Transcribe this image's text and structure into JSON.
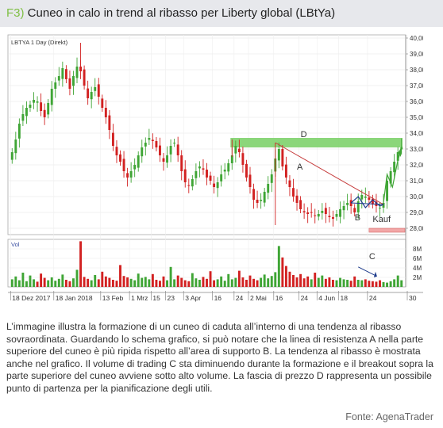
{
  "header": {
    "figure_tag": "F3)",
    "title": "Cuneo in calo in trend al ribasso per Liberty global (LBtYa)"
  },
  "chart_data": {
    "type": "candlestick",
    "instrument_label": "LBTYA 1 Day (Direkt)",
    "volume_label": "Vol",
    "price_axis": {
      "ylim": [
        27.6,
        40.2
      ],
      "ticks": [
        "28,00",
        "29,00",
        "30,00",
        "31,00",
        "32,00",
        "33,00",
        "34,00",
        "35,00",
        "36,00",
        "37,00",
        "38,00",
        "39,00",
        "40,00"
      ]
    },
    "volume_axis": {
      "ylim": [
        0,
        10
      ],
      "ticks": [
        "2M",
        "4M",
        "6M",
        "8M"
      ]
    },
    "x_axis_labels": [
      "18 Dez 2017",
      "18 Jan 2018",
      "13 Feb",
      "1 Mrz",
      "15",
      "23",
      "3 Apr",
      "16",
      "24",
      "2 Mai",
      "16",
      "24",
      "4 Jun",
      "18",
      "24",
      "30"
    ],
    "close_path": [
      32.8,
      33.6,
      34.6,
      35.2,
      35.6,
      35.8,
      36.1,
      36.0,
      35.4,
      35.0,
      35.9,
      36.8,
      37.2,
      37.6,
      38.1,
      37.4,
      36.8,
      37.6,
      38.2,
      37.9,
      37.0,
      36.2,
      36.6,
      36.9,
      36.3,
      35.6,
      35.0,
      34.2,
      33.2,
      32.6,
      32.2,
      31.6,
      31.2,
      31.6,
      32.0,
      32.6,
      33.1,
      33.4,
      33.7,
      33.5,
      33.1,
      32.6,
      32.2,
      32.6,
      33.2,
      33.4,
      32.6,
      31.6,
      30.9,
      30.7,
      31.1,
      31.6,
      31.9,
      31.7,
      31.2,
      31.0,
      30.6,
      30.9,
      31.4,
      31.7,
      32.1,
      32.6,
      33.2,
      32.8,
      32.0,
      31.2,
      30.6,
      29.8,
      29.6,
      29.8,
      30.3,
      30.8,
      31.4,
      32.4,
      33.0,
      31.9,
      31.2,
      30.6,
      30.0,
      29.6,
      29.2,
      29.0,
      28.9,
      29.0,
      28.8,
      28.9,
      29.1,
      28.9,
      28.7,
      28.6,
      28.9,
      29.2,
      29.4,
      29.6,
      29.4,
      29.0,
      29.7,
      30.1,
      30.0,
      29.8,
      29.5,
      29.4,
      29.3,
      29.6,
      31.0,
      31.6,
      32.2,
      32.8,
      33.1
    ],
    "volume": [
      1.6,
      2.2,
      1.4,
      3.0,
      1.2,
      2.4,
      1.6,
      1.1,
      2.8,
      1.9,
      1.4,
      2.0,
      1.3,
      1.7,
      2.6,
      1.5,
      1.2,
      1.8,
      3.6,
      9.6,
      2.1,
      1.7,
      1.4,
      2.5,
      1.6,
      3.2,
      2.2,
      1.9,
      1.5,
      1.3,
      4.6,
      2.3,
      2.0,
      1.7,
      1.4,
      2.8,
      1.9,
      2.1,
      1.6,
      2.7,
      1.5,
      1.3,
      2.2,
      1.4,
      4.2,
      1.6,
      2.4,
      1.9,
      1.4,
      1.2,
      2.9,
      1.8,
      1.5,
      2.1,
      1.7,
      3.3,
      1.4,
      1.6,
      2.2,
      1.3,
      2.7,
      1.6,
      1.9,
      3.4,
      2.0,
      1.5,
      2.4,
      1.7,
      1.4,
      1.9,
      2.6,
      1.8,
      2.3,
      3.1,
      8.6,
      6.2,
      4.4,
      3.2,
      2.5,
      2.0,
      2.7,
      1.8,
      2.2,
      1.6,
      3.0,
      1.9,
      2.4,
      1.7,
      2.0,
      1.5,
      1.4,
      1.9,
      1.6,
      1.5,
      1.3,
      2.2,
      1.5,
      1.4,
      1.6,
      1.3,
      1.2,
      1.1,
      1.4,
      1.0,
      0.9,
      1.2,
      1.6,
      2.4,
      1.4
    ],
    "annotations": {
      "band_label": "D",
      "band_range": [
        33.1,
        33.7
      ],
      "resistance_label": "A",
      "support_label": "B",
      "breakout_label": "Kauf",
      "volume_label": "C"
    },
    "colors": {
      "up": "#3fa535",
      "down": "#d22121",
      "band": "#7ed26b",
      "resistance_line": "#c63b3b",
      "support_line": "#1e3c8c",
      "kauf_box": "#f2a7a7",
      "forecast_line": "#3fa535"
    },
    "grid": true
  },
  "caption": {
    "text": "L’immagine illustra la formazione di un cuneo di caduta all’interno di una tendenza al ribasso sovraordinata. Guardando lo schema grafico, si può notare che la linea di resistenza A nella parte superiore del cuneo è più ripida rispetto all’area di supporto B. La tendenza al ribasso è mostrata anche nel grafico. Il volume di trading C sta diminuendo durante la formazione e il breakout sopra la parte superiore del cuneo avviene sotto alto volume. La fascia di prezzo D rappresenta un possibile punto di partenza per la pianificazione degli utili."
  },
  "source": "Fonte: AgenaTrader"
}
